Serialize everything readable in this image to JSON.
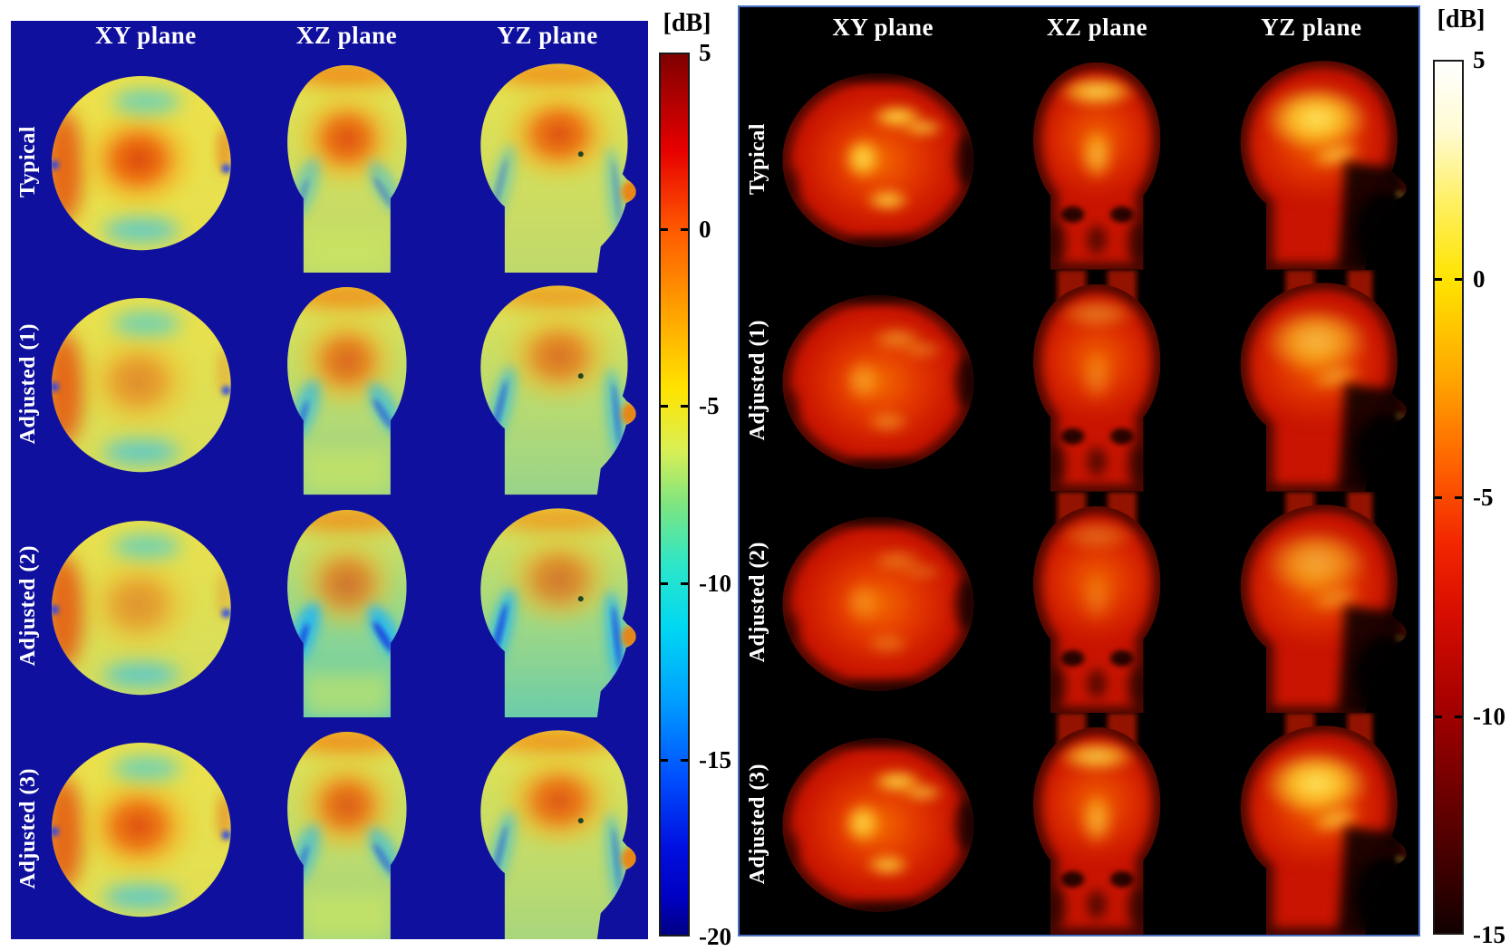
{
  "colors": {
    "figure_bg": "#ffffff",
    "left_panel_bg": "#10109e",
    "right_panel_bg": "#000000",
    "right_panel_border": "#4a6fc0",
    "header_text": "#ffffff",
    "colorbar_text": "#000000"
  },
  "chart_data": {
    "type": "heatmap",
    "title": "",
    "description": "Two 4x3 grids of head field maps in dB. Left panel: jet colormap on dark-blue background, scale 5 to -20 dB; mostly yellow heads with a red-orange hotspot in the upper brain and cyan/blue low-field streaks. Right panel: hot colormap on black background, scale 5 to -15 dB; red heads with yellow high-intensity brain regions and near-black low regions at head rim and face.",
    "panels": [
      {
        "id": "left",
        "colormap": "jet",
        "background": "#10109e",
        "columns": [
          "XY plane",
          "XZ plane",
          "YZ plane"
        ],
        "rows": [
          "Typical",
          "Adjusted (1)",
          "Adjusted (2)",
          "Adjusted (3)"
        ],
        "colorbar": {
          "unit_label": "[dB]",
          "max": 5,
          "min": -20,
          "ticks": [
            "5",
            "0",
            "-5",
            "-10",
            "-15",
            "-20"
          ]
        },
        "cells": [
          [
            {
              "plane": "axial",
              "hotspot": 1.0,
              "cool": 0.12
            },
            {
              "plane": "coronal",
              "hotspot": 0.95,
              "cool": 0.3
            },
            {
              "plane": "sagittal",
              "hotspot": 0.95,
              "cool": 0.28
            }
          ],
          [
            {
              "plane": "axial",
              "hotspot": 0.55,
              "cool": 0.3
            },
            {
              "plane": "coronal",
              "hotspot": 0.8,
              "cool": 0.5
            },
            {
              "plane": "sagittal",
              "hotspot": 0.72,
              "cool": 0.5
            }
          ],
          [
            {
              "plane": "axial",
              "hotspot": 0.5,
              "cool": 0.35
            },
            {
              "plane": "coronal",
              "hotspot": 0.7,
              "cool": 0.85
            },
            {
              "plane": "sagittal",
              "hotspot": 0.68,
              "cool": 0.75
            }
          ],
          [
            {
              "plane": "axial",
              "hotspot": 0.95,
              "cool": 0.2
            },
            {
              "plane": "coronal",
              "hotspot": 0.88,
              "cool": 0.45
            },
            {
              "plane": "sagittal",
              "hotspot": 0.9,
              "cool": 0.4
            }
          ]
        ]
      },
      {
        "id": "right",
        "colormap": "hot",
        "background": "#000000",
        "columns": [
          "XY plane",
          "XZ plane",
          "YZ plane"
        ],
        "rows": [
          "Typical",
          "Adjusted (1)",
          "Adjusted (2)",
          "Adjusted (3)"
        ],
        "colorbar": {
          "unit_label": "[dB]",
          "max": 5,
          "min": -15,
          "ticks": [
            "5",
            "0",
            "-5",
            "-10",
            "-15"
          ]
        },
        "cells": [
          [
            {
              "plane": "axial",
              "yellow": 0.9,
              "bleed": false
            },
            {
              "plane": "coronal",
              "yellow": 0.85,
              "bleed": false
            },
            {
              "plane": "sagittal",
              "yellow": 0.95,
              "bleed": false
            }
          ],
          [
            {
              "plane": "axial",
              "yellow": 0.45,
              "bleed": false
            },
            {
              "plane": "coronal",
              "yellow": 0.4,
              "bleed": true
            },
            {
              "plane": "sagittal",
              "yellow": 0.7,
              "bleed": true
            }
          ],
          [
            {
              "plane": "axial",
              "yellow": 0.35,
              "bleed": false
            },
            {
              "plane": "coronal",
              "yellow": 0.32,
              "bleed": true
            },
            {
              "plane": "sagittal",
              "yellow": 0.6,
              "bleed": true
            }
          ],
          [
            {
              "plane": "axial",
              "yellow": 0.85,
              "bleed": false
            },
            {
              "plane": "coronal",
              "yellow": 0.8,
              "bleed": true
            },
            {
              "plane": "sagittal",
              "yellow": 0.95,
              "bleed": true
            }
          ]
        ]
      }
    ]
  }
}
